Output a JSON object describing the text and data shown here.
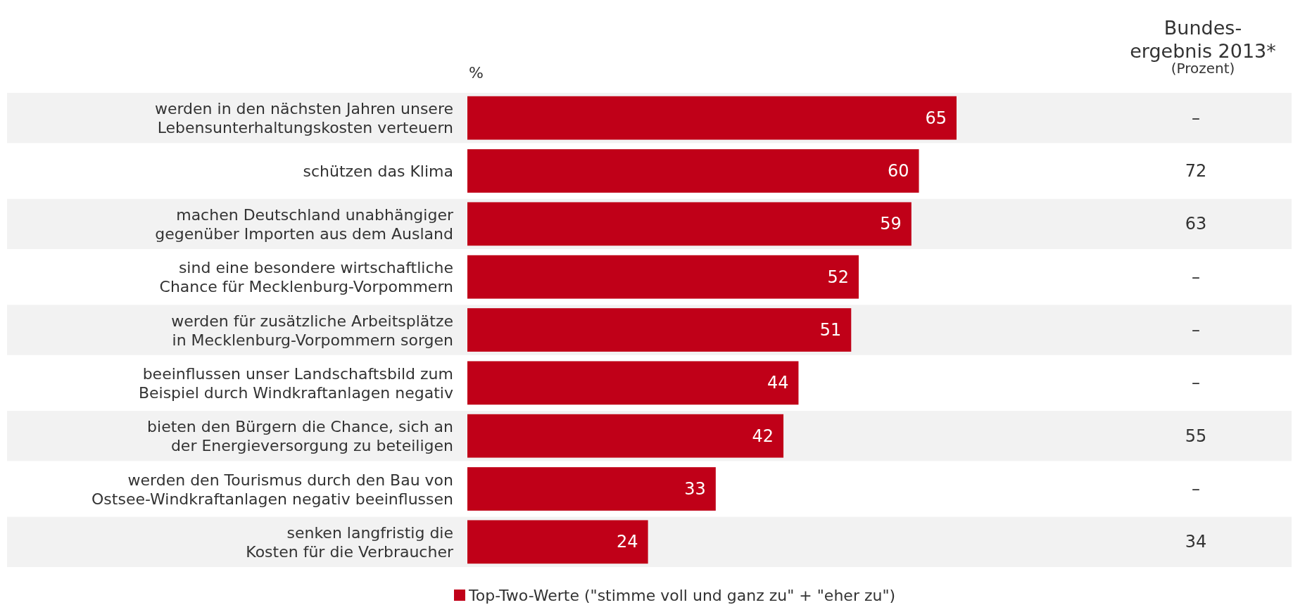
{
  "chart_data": {
    "type": "bar",
    "orientation": "horizontal",
    "xlabel": "%",
    "categories": [
      "werden in den nächsten Jahren unsere\nLebensunterhaltungskosten verteuern",
      "schützen das Klima",
      "machen Deutschland unabhängiger\ngegenüber Importen aus dem Ausland",
      "sind eine besondere wirtschaftliche\nChance für Mecklenburg-Vorpommern",
      "werden für zusätzliche Arbeitsplätze\nin Mecklenburg-Vorpommern sorgen",
      "beeinflussen unser Landschaftsbild zum\nBeispiel durch Windkraftanlagen negativ",
      "bieten den Bürgern die Chance, sich an\nder Energieversorgung zu beteiligen",
      "werden den Tourismus durch den Bau von\nOstsee-Windkraftanlagen negativ beeinflussen",
      "senken langfristig die\nKosten für die Verbraucher"
    ],
    "series": [
      {
        "name": "Top-Two-Werte (\"stimme voll und ganz zu\" + \"eher zu\")",
        "color": "#c00018",
        "values": [
          65,
          60,
          59,
          52,
          51,
          44,
          42,
          33,
          24
        ]
      }
    ],
    "data_labels": true,
    "legend": "bottom",
    "annotations": [
      "Bundes-\nergebnis 2013*",
      "(Prozent)",
      "–",
      "72",
      "63",
      "–",
      "–",
      "–",
      "55",
      "–",
      "34"
    ]
  }
}
